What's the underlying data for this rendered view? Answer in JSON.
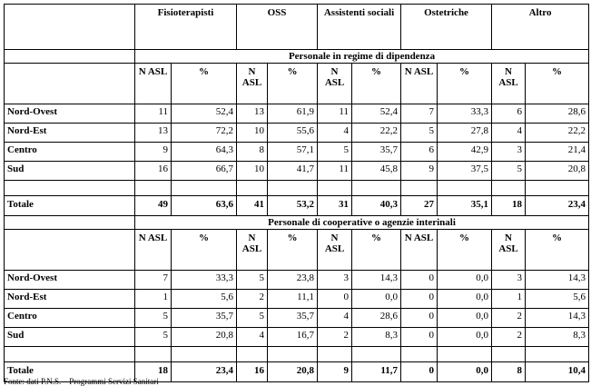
{
  "columns": [
    "Fisioterapisti",
    "OSS",
    "Assistenti sociali",
    "Ostetriche",
    "Altro"
  ],
  "subheaders": {
    "n": "N ASL",
    "pct": "%"
  },
  "sections": [
    {
      "title": "Personale in regime di dipendenza",
      "rows": [
        {
          "region": "Nord-Ovest",
          "cells": [
            "11",
            "52,4",
            "13",
            "61,9",
            "11",
            "52,4",
            "7",
            "33,3",
            "6",
            "28,6"
          ]
        },
        {
          "region": "Nord-Est",
          "cells": [
            "13",
            "72,2",
            "10",
            "55,6",
            "4",
            "22,2",
            "5",
            "27,8",
            "4",
            "22,2"
          ]
        },
        {
          "region": "Centro",
          "cells": [
            "9",
            "64,3",
            "8",
            "57,1",
            "5",
            "35,7",
            "6",
            "42,9",
            "3",
            "21,4"
          ]
        },
        {
          "region": "Sud",
          "cells": [
            "16",
            "66,7",
            "10",
            "41,7",
            "11",
            "45,8",
            "9",
            "37,5",
            "5",
            "20,8"
          ]
        }
      ],
      "total": {
        "label": "Totale",
        "cells": [
          "49",
          "63,6",
          "41",
          "53,2",
          "31",
          "40,3",
          "27",
          "35,1",
          "18",
          "23,4"
        ]
      }
    },
    {
      "title": "Personale di cooperative o agenzie interinali",
      "rows": [
        {
          "region": "Nord-Ovest",
          "cells": [
            "7",
            "33,3",
            "5",
            "23,8",
            "3",
            "14,3",
            "0",
            "0,0",
            "3",
            "14,3"
          ]
        },
        {
          "region": "Nord-Est",
          "cells": [
            "1",
            "5,6",
            "2",
            "11,1",
            "0",
            "0,0",
            "0",
            "0,0",
            "1",
            "5,6"
          ]
        },
        {
          "region": "Centro",
          "cells": [
            "5",
            "35,7",
            "5",
            "35,7",
            "4",
            "28,6",
            "0",
            "0,0",
            "2",
            "14,3"
          ]
        },
        {
          "region": "Sud",
          "cells": [
            "5",
            "20,8",
            "4",
            "16,7",
            "2",
            "8,3",
            "0",
            "0,0",
            "2",
            "8,3"
          ]
        }
      ],
      "total": {
        "label": "Totale",
        "cells": [
          "18",
          "23,4",
          "16",
          "20,8",
          "9",
          "11,7",
          "0",
          "0,0",
          "8",
          "10,4"
        ]
      }
    }
  ],
  "footnote": "Fonte: dati P.N.S. – Programmi Servizi Sanitari"
}
